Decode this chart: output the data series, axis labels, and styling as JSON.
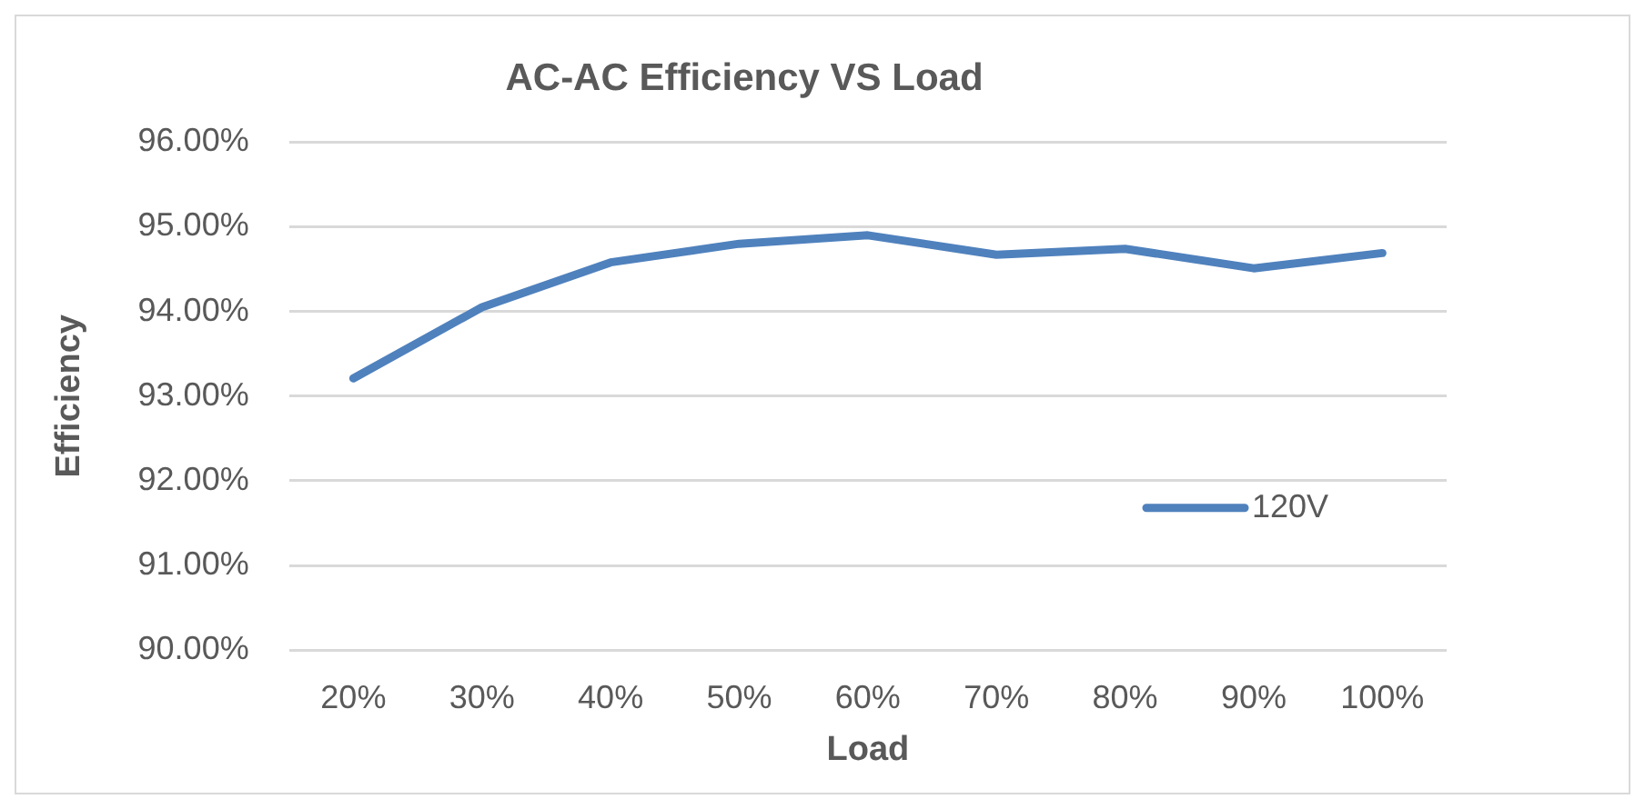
{
  "chart_data": {
    "type": "line",
    "title": "AC-AC Efficiency VS Load",
    "xlabel": "Load",
    "ylabel": "Efficiency",
    "categories": [
      "20%",
      "30%",
      "40%",
      "50%",
      "60%",
      "70%",
      "80%",
      "90%",
      "100%"
    ],
    "series": [
      {
        "name": "120V",
        "color": "#4f81bd",
        "values": [
          93.21,
          94.05,
          94.58,
          94.8,
          94.9,
          94.67,
          94.74,
          94.51,
          94.69
        ]
      }
    ],
    "ylim": [
      90,
      96
    ],
    "yticks": [
      {
        "value": 90,
        "label": "90.00%"
      },
      {
        "value": 91,
        "label": "91.00%"
      },
      {
        "value": 92,
        "label": "92.00%"
      },
      {
        "value": 93,
        "label": "93.00%"
      },
      {
        "value": 94,
        "label": "94.00%"
      },
      {
        "value": 95,
        "label": "95.00%"
      },
      {
        "value": 96,
        "label": "96.00%"
      }
    ],
    "grid": "y",
    "legend": "right",
    "marker": "none",
    "line_style": "solid"
  }
}
